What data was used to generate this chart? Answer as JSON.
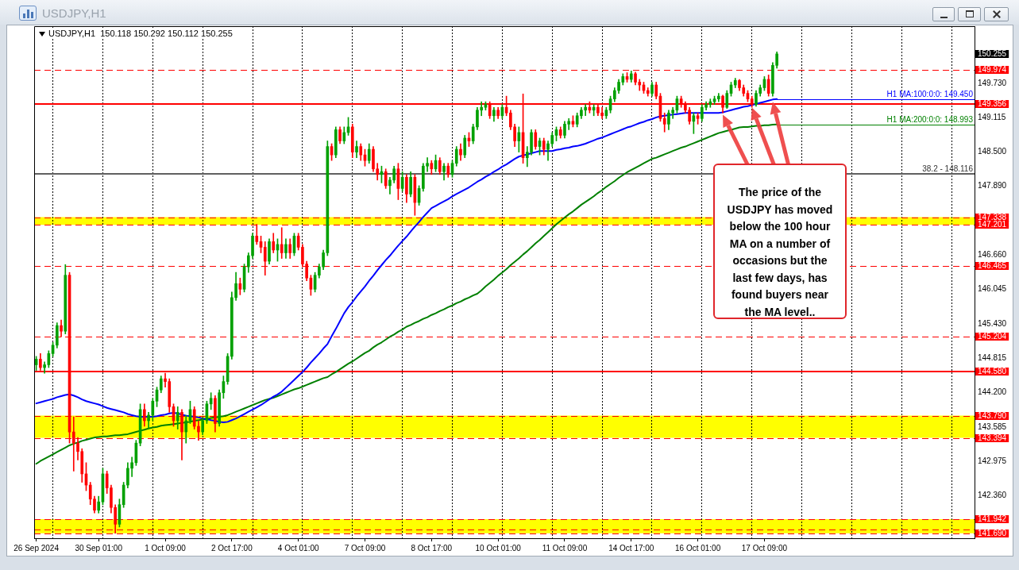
{
  "chart_data": {
    "type": "candlestick",
    "title": "USDJPY,H1",
    "subtitle": "USDJPY,H1  150.118 150.292 150.112 150.255",
    "categories": [
      "26 Sep 2024",
      null,
      null,
      null,
      null,
      null,
      null,
      null,
      null,
      null,
      null,
      null,
      null,
      null,
      null,
      "30 Sep 01:00",
      null,
      null,
      null,
      null,
      null,
      null,
      null,
      null,
      null,
      null,
      null,
      null,
      null,
      null,
      null,
      "1 Oct 09:00",
      null,
      null,
      null,
      null,
      null,
      null,
      null,
      null,
      null,
      null,
      null,
      null,
      null,
      null,
      null,
      "2 Oct 17:00",
      null,
      null,
      null,
      null,
      null,
      null,
      null,
      null,
      null,
      null,
      null,
      null,
      null,
      null,
      null,
      "4 Oct 01:00",
      null,
      null,
      null,
      null,
      null,
      null,
      null,
      null,
      null,
      null,
      null,
      null,
      null,
      null,
      null,
      "7 Oct 09:00",
      null,
      null,
      null,
      null,
      null,
      null,
      null,
      null,
      null,
      null,
      null,
      null,
      null,
      null,
      null,
      "8 Oct 17:00",
      null,
      null,
      null,
      null,
      null,
      null,
      null,
      null,
      null,
      null,
      null,
      null,
      null,
      null,
      null,
      "10 Oct 01:00",
      null,
      null,
      null,
      null,
      null,
      null,
      null,
      null,
      null,
      null,
      null,
      null,
      null,
      null,
      null,
      "11 Oct 09:00",
      null,
      null,
      null,
      null,
      null,
      null,
      null,
      null,
      null,
      null,
      null,
      null,
      null,
      null,
      null,
      "14 Oct 17:00",
      null,
      null,
      null,
      null,
      null,
      null,
      null,
      null,
      null,
      null,
      null,
      null,
      null,
      null,
      null,
      "16 Oct 01:00",
      null,
      null,
      null,
      null,
      null,
      null,
      null,
      null,
      null,
      null,
      null,
      null,
      null,
      null,
      null,
      "17 Oct 09:00",
      null,
      null,
      null,
      null,
      null,
      null,
      null,
      null,
      null,
      null,
      null,
      null,
      null,
      null,
      null,
      null,
      null,
      null,
      null,
      null,
      null,
      null,
      null,
      null,
      null,
      null,
      null,
      null,
      null,
      null,
      null,
      null,
      null,
      null,
      null,
      null,
      null,
      null,
      null,
      null,
      null,
      null,
      null,
      null,
      null,
      null,
      null,
      null,
      null,
      null
    ],
    "ohlc": [
      [
        144.7,
        144.85,
        144.6,
        144.8
      ],
      [
        144.8,
        144.9,
        144.6,
        144.65
      ],
      [
        144.65,
        144.75,
        144.55,
        144.7
      ],
      [
        144.7,
        144.95,
        144.65,
        144.9
      ],
      [
        144.9,
        145.1,
        144.85,
        145.05
      ],
      [
        145.05,
        145.45,
        145.0,
        145.4
      ],
      [
        145.4,
        145.5,
        145.2,
        145.3
      ],
      [
        145.3,
        146.49,
        145.25,
        146.3
      ],
      [
        146.3,
        146.35,
        143.3,
        143.5
      ],
      [
        143.5,
        143.77,
        142.8,
        143.3
      ],
      [
        143.3,
        143.4,
        143.0,
        143.15
      ],
      [
        143.15,
        143.2,
        142.6,
        142.75
      ],
      [
        142.75,
        142.95,
        142.45,
        142.55
      ],
      [
        142.55,
        142.6,
        142.2,
        142.3
      ],
      [
        142.3,
        142.35,
        142.05,
        142.1
      ],
      [
        142.1,
        142.35,
        142.05,
        142.25
      ],
      [
        142.25,
        142.85,
        142.2,
        142.75
      ],
      [
        142.75,
        142.8,
        142.4,
        142.5
      ],
      [
        142.5,
        142.55,
        142.05,
        142.15
      ],
      [
        142.15,
        142.2,
        141.69,
        141.85
      ],
      [
        141.85,
        142.3,
        141.8,
        142.2
      ],
      [
        142.2,
        142.6,
        142.15,
        142.55
      ],
      [
        142.55,
        142.95,
        142.5,
        142.85
      ],
      [
        142.85,
        143.05,
        142.7,
        142.95
      ],
      [
        142.95,
        143.35,
        142.9,
        143.3
      ],
      [
        143.3,
        144.0,
        143.25,
        143.9
      ],
      [
        143.9,
        144.0,
        143.6,
        143.7
      ],
      [
        143.7,
        143.85,
        143.55,
        143.8
      ],
      [
        143.8,
        144.1,
        143.7,
        144.05
      ],
      [
        144.05,
        144.3,
        143.95,
        144.25
      ],
      [
        144.25,
        144.5,
        144.2,
        144.45
      ],
      [
        144.45,
        144.55,
        144.3,
        144.4
      ],
      [
        144.4,
        144.45,
        143.85,
        143.95
      ],
      [
        143.95,
        144.0,
        143.6,
        143.7
      ],
      [
        143.7,
        143.95,
        143.55,
        143.85
      ],
      [
        143.85,
        143.9,
        143.0,
        143.5
      ],
      [
        143.5,
        143.8,
        143.3,
        143.7
      ],
      [
        143.7,
        144.05,
        143.65,
        143.9
      ],
      [
        143.9,
        143.95,
        143.55,
        143.6
      ],
      [
        143.6,
        143.7,
        143.35,
        143.5
      ],
      [
        143.5,
        143.75,
        143.45,
        143.7
      ],
      [
        143.7,
        144.05,
        143.65,
        144.0
      ],
      [
        144.0,
        144.2,
        143.9,
        144.1
      ],
      [
        144.1,
        144.15,
        143.5,
        143.65
      ],
      [
        143.65,
        144.25,
        143.6,
        144.2
      ],
      [
        144.2,
        144.5,
        144.1,
        144.4
      ],
      [
        144.4,
        144.9,
        144.35,
        144.85
      ],
      [
        144.85,
        146.0,
        144.8,
        145.9
      ],
      [
        145.9,
        146.35,
        145.85,
        146.15
      ],
      [
        146.15,
        146.25,
        145.95,
        146.05
      ],
      [
        146.05,
        146.5,
        146.0,
        146.45
      ],
      [
        146.45,
        146.7,
        146.35,
        146.65
      ],
      [
        146.65,
        147.05,
        146.6,
        147.0
      ],
      [
        147.0,
        147.21,
        146.85,
        146.9
      ],
      [
        146.9,
        147.0,
        146.7,
        146.8
      ],
      [
        146.8,
        146.9,
        146.3,
        146.55
      ],
      [
        146.55,
        146.95,
        146.5,
        146.9
      ],
      [
        146.9,
        147.05,
        146.7,
        146.75
      ],
      [
        146.75,
        146.95,
        146.55,
        146.85
      ],
      [
        146.85,
        147.15,
        146.6,
        146.7
      ],
      [
        146.7,
        146.95,
        146.6,
        146.85
      ],
      [
        146.85,
        146.95,
        146.6,
        146.7
      ],
      [
        146.7,
        147.05,
        146.65,
        147.0
      ],
      [
        147.0,
        147.05,
        146.75,
        146.8
      ],
      [
        146.8,
        146.85,
        146.45,
        146.5
      ],
      [
        146.5,
        146.55,
        146.2,
        146.25
      ],
      [
        146.25,
        146.3,
        145.94,
        146.05
      ],
      [
        146.05,
        146.35,
        146.0,
        146.3
      ],
      [
        146.3,
        146.5,
        146.25,
        146.45
      ],
      [
        146.45,
        146.75,
        146.4,
        146.7
      ],
      [
        146.7,
        148.7,
        146.65,
        148.6
      ],
      [
        148.6,
        148.65,
        148.35,
        148.45
      ],
      [
        148.45,
        148.95,
        148.4,
        148.9
      ],
      [
        148.9,
        148.95,
        148.65,
        148.7
      ],
      [
        148.7,
        148.95,
        148.65,
        148.85
      ],
      [
        148.85,
        149.12,
        148.8,
        148.95
      ],
      [
        148.95,
        149.0,
        148.4,
        148.5
      ],
      [
        148.5,
        148.7,
        148.4,
        148.6
      ],
      [
        148.6,
        148.65,
        148.35,
        148.45
      ],
      [
        148.45,
        148.55,
        148.25,
        148.35
      ],
      [
        148.35,
        148.65,
        148.3,
        148.55
      ],
      [
        148.55,
        148.6,
        148.15,
        148.2
      ],
      [
        148.2,
        148.3,
        148.0,
        148.1
      ],
      [
        148.1,
        148.25,
        147.95,
        148.15
      ],
      [
        148.15,
        148.2,
        147.85,
        147.9
      ],
      [
        147.9,
        148.05,
        147.75,
        148.0
      ],
      [
        148.0,
        148.25,
        147.95,
        148.2
      ],
      [
        148.2,
        148.3,
        147.65,
        147.85
      ],
      [
        147.85,
        148.15,
        147.8,
        148.05
      ],
      [
        148.05,
        148.1,
        147.6,
        147.75
      ],
      [
        147.75,
        148.15,
        147.7,
        148.05
      ],
      [
        148.05,
        148.1,
        147.37,
        147.6
      ],
      [
        147.6,
        147.9,
        147.55,
        147.85
      ],
      [
        147.85,
        148.3,
        147.8,
        148.25
      ],
      [
        148.25,
        148.4,
        148.15,
        148.3
      ],
      [
        148.3,
        148.35,
        148.1,
        148.2
      ],
      [
        148.2,
        148.45,
        148.15,
        148.35
      ],
      [
        148.35,
        148.4,
        148.1,
        148.15
      ],
      [
        148.15,
        148.3,
        148.0,
        148.25
      ],
      [
        148.25,
        148.3,
        148.05,
        148.1
      ],
      [
        148.1,
        148.35,
        148.05,
        148.3
      ],
      [
        148.3,
        148.6,
        148.25,
        148.55
      ],
      [
        148.55,
        148.65,
        148.35,
        148.45
      ],
      [
        148.45,
        148.8,
        148.4,
        148.75
      ],
      [
        148.75,
        148.85,
        148.6,
        148.7
      ],
      [
        148.7,
        149.0,
        148.65,
        148.95
      ],
      [
        148.95,
        149.3,
        148.9,
        149.25
      ],
      [
        149.25,
        149.4,
        149.15,
        149.3
      ],
      [
        149.3,
        149.4,
        149.25,
        149.35
      ],
      [
        149.35,
        149.4,
        149.1,
        149.15
      ],
      [
        149.15,
        149.3,
        149.05,
        149.25
      ],
      [
        149.25,
        149.3,
        149.1,
        149.15
      ],
      [
        149.15,
        149.35,
        149.1,
        149.3
      ],
      [
        149.3,
        149.5,
        149.15,
        149.2
      ],
      [
        149.2,
        149.25,
        148.9,
        148.95
      ],
      [
        148.95,
        149.0,
        148.6,
        148.7
      ],
      [
        148.7,
        148.95,
        148.5,
        148.85
      ],
      [
        148.85,
        149.54,
        148.3,
        148.4
      ],
      [
        148.4,
        148.6,
        148.24,
        148.5
      ],
      [
        148.5,
        148.9,
        148.45,
        148.85
      ],
      [
        148.85,
        148.9,
        148.55,
        148.6
      ],
      [
        148.6,
        148.75,
        148.45,
        148.7
      ],
      [
        148.7,
        148.75,
        148.45,
        148.55
      ],
      [
        148.55,
        148.7,
        148.35,
        148.65
      ],
      [
        148.65,
        148.85,
        148.6,
        148.8
      ],
      [
        148.8,
        148.95,
        148.7,
        148.9
      ],
      [
        148.9,
        148.95,
        148.75,
        148.8
      ],
      [
        148.8,
        149.05,
        148.75,
        149.0
      ],
      [
        149.0,
        149.1,
        148.9,
        149.05
      ],
      [
        149.05,
        149.15,
        148.95,
        149.0
      ],
      [
        149.0,
        149.2,
        148.95,
        149.15
      ],
      [
        149.15,
        149.3,
        149.1,
        149.25
      ],
      [
        149.25,
        149.35,
        149.15,
        149.3
      ],
      [
        149.3,
        149.4,
        149.2,
        149.25
      ],
      [
        149.25,
        149.35,
        149.15,
        149.3
      ],
      [
        149.3,
        149.35,
        149.15,
        149.2
      ],
      [
        149.2,
        149.3,
        149.1,
        149.15
      ],
      [
        149.15,
        149.3,
        149.1,
        149.25
      ],
      [
        149.25,
        149.5,
        149.2,
        149.45
      ],
      [
        149.45,
        149.65,
        149.4,
        149.6
      ],
      [
        149.6,
        149.8,
        149.55,
        149.75
      ],
      [
        149.75,
        149.9,
        149.7,
        149.85
      ],
      [
        149.85,
        149.92,
        149.75,
        149.8
      ],
      [
        149.8,
        149.95,
        149.75,
        149.9
      ],
      [
        149.9,
        149.93,
        149.7,
        149.75
      ],
      [
        149.75,
        149.8,
        149.6,
        149.7
      ],
      [
        149.7,
        149.75,
        149.55,
        149.6
      ],
      [
        149.6,
        149.65,
        149.5,
        149.55
      ],
      [
        149.55,
        149.75,
        149.5,
        149.7
      ],
      [
        149.7,
        149.75,
        149.45,
        149.5
      ],
      [
        149.5,
        149.55,
        149.05,
        149.1
      ],
      [
        149.1,
        149.2,
        148.86,
        149.0
      ],
      [
        149.0,
        149.25,
        148.9,
        149.2
      ],
      [
        149.2,
        149.3,
        149.1,
        149.25
      ],
      [
        149.25,
        149.5,
        149.2,
        149.45
      ],
      [
        149.45,
        149.5,
        149.3,
        149.35
      ],
      [
        149.35,
        149.4,
        149.2,
        149.25
      ],
      [
        149.25,
        149.3,
        149.0,
        149.05
      ],
      [
        149.05,
        149.2,
        148.83,
        149.15
      ],
      [
        149.15,
        149.2,
        149.0,
        149.1
      ],
      [
        149.1,
        149.35,
        149.05,
        149.3
      ],
      [
        149.3,
        149.4,
        149.25,
        149.35
      ],
      [
        149.35,
        149.45,
        149.3,
        149.4
      ],
      [
        149.4,
        149.5,
        149.35,
        149.45
      ],
      [
        149.45,
        149.55,
        149.4,
        149.5
      ],
      [
        149.5,
        149.52,
        149.2,
        149.3
      ],
      [
        149.3,
        149.6,
        149.28,
        149.55
      ],
      [
        149.55,
        149.75,
        149.5,
        149.7
      ],
      [
        149.7,
        149.82,
        149.65,
        149.78
      ],
      [
        149.78,
        149.8,
        149.6,
        149.65
      ],
      [
        149.65,
        149.7,
        149.5,
        149.55
      ],
      [
        149.55,
        149.6,
        149.4,
        149.45
      ],
      [
        149.45,
        149.5,
        149.3,
        149.35
      ],
      [
        149.35,
        149.6,
        149.32,
        149.55
      ],
      [
        149.55,
        149.7,
        149.5,
        149.65
      ],
      [
        149.65,
        149.85,
        149.6,
        149.8
      ],
      [
        149.8,
        149.88,
        149.5,
        149.55
      ],
      [
        149.55,
        150.1,
        149.5,
        150.05
      ],
      [
        150.05,
        150.292,
        150.0,
        150.255
      ],
      null,
      null,
      null,
      null,
      null,
      null,
      null,
      null,
      null,
      null,
      null,
      null,
      null,
      null,
      null,
      null,
      null,
      null,
      null,
      null,
      null,
      null,
      null,
      null,
      null,
      null,
      null,
      null,
      null,
      null,
      null,
      null,
      null,
      null,
      null,
      null,
      null,
      null,
      null,
      null,
      null,
      null,
      null,
      null,
      null,
      null,
      null
    ],
    "colors": [
      "#00a000",
      "#ff0000",
      "#00a000",
      "#00a000",
      "#00a000",
      "#00a000",
      "#ff0000",
      "#00a000",
      "#ff0000",
      "#ff0000",
      "#ff0000",
      "#ff0000",
      "#ff0000",
      "#ff0000",
      "#ff0000",
      "#00a000",
      "#00a000",
      "#ff0000",
      "#ff0000",
      "#ff0000",
      "#00a000",
      "#00a000",
      "#00a000",
      "#00a000",
      "#00a000",
      "#00a000",
      "#ff0000",
      "#00a000",
      "#00a000",
      "#00a000",
      "#00a000",
      "#ff0000",
      "#ff0000",
      "#ff0000",
      "#00a000",
      "#ff0000",
      "#00a000",
      "#00a000",
      "#ff0000",
      "#ff0000",
      "#00a000",
      "#00a000",
      "#00a000",
      "#ff0000",
      "#00a000",
      "#00a000",
      "#00a000",
      "#00a000",
      "#00a000",
      "#ff0000",
      "#00a000",
      "#00a000",
      "#00a000",
      "#ff0000",
      "#ff0000",
      "#ff0000",
      "#00a000",
      "#ff0000",
      "#00a000",
      "#ff0000",
      "#00a000",
      "#ff0000",
      "#00a000",
      "#ff0000",
      "#ff0000",
      "#ff0000",
      "#ff0000",
      "#00a000",
      "#00a000",
      "#00a000",
      "#00a000",
      "#ff0000",
      "#00a000",
      "#ff0000",
      "#00a000",
      "#00a000",
      "#ff0000",
      "#00a000",
      "#ff0000",
      "#ff0000",
      "#00a000",
      "#ff0000",
      "#ff0000",
      "#00a000",
      "#ff0000",
      "#00a000",
      "#00a000",
      "#ff0000",
      "#00a000",
      "#ff0000",
      "#00a000",
      "#ff0000",
      "#00a000",
      "#00a000",
      "#00a000",
      "#ff0000",
      "#00a000",
      "#ff0000",
      "#00a000",
      "#ff0000",
      "#00a000",
      "#00a000",
      "#ff0000",
      "#00a000",
      "#ff0000",
      "#00a000",
      "#00a000",
      "#00a000",
      "#00a000",
      "#ff0000",
      "#00a000",
      "#ff0000",
      "#00a000",
      "#ff0000",
      "#ff0000",
      "#ff0000",
      "#00a000",
      "#ff0000",
      "#00a000",
      "#00a000",
      "#ff0000",
      "#00a000",
      "#ff0000",
      "#00a000",
      "#00a000",
      "#00a000",
      "#ff0000",
      "#00a000",
      "#00a000",
      "#ff0000",
      "#00a000",
      "#00a000",
      "#00a000",
      "#ff0000",
      "#00a000",
      "#ff0000",
      "#ff0000",
      "#00a000",
      "#00a000",
      "#00a000",
      "#00a000",
      "#00a000",
      "#ff0000",
      "#00a000",
      "#ff0000",
      "#ff0000",
      "#ff0000",
      "#ff0000",
      "#00a000",
      "#ff0000",
      "#ff0000",
      "#ff0000",
      "#00a000",
      "#00a000",
      "#00a000",
      "#ff0000",
      "#ff0000",
      "#ff0000",
      "#00a000",
      "#ff0000",
      "#00a000",
      "#00a000",
      "#00a000",
      "#00a000",
      "#00a000",
      "#ff0000",
      "#00a000",
      "#00a000",
      "#00a000",
      "#ff0000",
      "#ff0000",
      "#ff0000",
      "#ff0000",
      "#00a000",
      "#00a000",
      "#00a000",
      "#ff0000",
      "#00a000",
      "#00a000",
      null,
      null,
      null,
      null,
      null,
      null,
      null,
      null,
      null,
      null,
      null,
      null,
      null,
      null,
      null,
      null,
      null,
      null,
      null,
      null,
      null,
      null,
      null,
      null,
      null,
      null,
      null,
      null,
      null,
      null,
      null,
      null,
      null,
      null,
      null,
      null,
      null,
      null,
      null,
      null,
      null,
      null,
      null,
      null,
      null,
      null,
      null
    ],
    "series": [
      {
        "name": "H1 MA:100:0:0: 149.450",
        "type": "line",
        "color": "#0000ff",
        "values": [
          144.01,
          144.03,
          144.05,
          144.07,
          144.09,
          144.12,
          144.14,
          144.16,
          144.17,
          144.15,
          144.12,
          144.08,
          144.05,
          144.03,
          144.01,
          143.99,
          143.96,
          143.93,
          143.91,
          143.89,
          143.87,
          143.85,
          143.82,
          143.8,
          143.78,
          143.77,
          143.77,
          143.77,
          143.77,
          143.78,
          143.8,
          143.81,
          143.83,
          143.84,
          143.83,
          143.81,
          143.79,
          143.78,
          143.77,
          143.76,
          143.74,
          143.73,
          143.71,
          143.7,
          143.68,
          143.67,
          143.68,
          143.71,
          143.74,
          143.78,
          143.82,
          143.86,
          143.9,
          143.94,
          143.98,
          144.03,
          144.08,
          144.13,
          144.17,
          144.22,
          144.29,
          144.36,
          144.43,
          144.5,
          144.57,
          144.65,
          144.74,
          144.82,
          144.9,
          144.99,
          145.07,
          145.21,
          145.34,
          145.48,
          145.62,
          145.73,
          145.82,
          145.92,
          146.01,
          146.1,
          146.2,
          146.29,
          146.39,
          146.48,
          146.57,
          146.65,
          146.74,
          146.83,
          146.91,
          146.99,
          147.08,
          147.17,
          147.25,
          147.34,
          147.42,
          147.5,
          147.54,
          147.58,
          147.62,
          147.66,
          147.71,
          147.75,
          147.79,
          147.83,
          147.87,
          147.92,
          147.97,
          148.01,
          148.06,
          148.1,
          148.15,
          148.19,
          148.24,
          148.28,
          148.33,
          148.38,
          148.42,
          148.44,
          148.46,
          148.48,
          148.5,
          148.52,
          148.52,
          148.52,
          148.52,
          148.54,
          148.55,
          148.57,
          148.58,
          148.6,
          148.61,
          148.63,
          148.65,
          148.68,
          148.71,
          148.74,
          148.76,
          148.79,
          148.82,
          148.85,
          148.88,
          148.91,
          148.94,
          148.96,
          148.99,
          149.02,
          149.04,
          149.07,
          149.09,
          149.12,
          149.14,
          149.15,
          149.16,
          149.17,
          149.18,
          149.19,
          149.2,
          149.2,
          149.2,
          149.2,
          149.2,
          149.2,
          149.2,
          149.2,
          149.2,
          149.21,
          149.23,
          149.25,
          149.27,
          149.29,
          149.31,
          149.32,
          149.34,
          149.36,
          149.38,
          149.4,
          149.42,
          149.44,
          149.45,
          null,
          null,
          null,
          null,
          null,
          null,
          null,
          null,
          null,
          null,
          null,
          null,
          null,
          null,
          null,
          null,
          null,
          null,
          null,
          null,
          null,
          null,
          null,
          null,
          null,
          null,
          null,
          null,
          null,
          null,
          null,
          null,
          null,
          null,
          null,
          null,
          null,
          null,
          null,
          null,
          null,
          null,
          null,
          null,
          null,
          null,
          null
        ]
      },
      {
        "name": "H1 MA:200:0:0: 148.993",
        "type": "line",
        "color": "#008000",
        "values": [
          142.93,
          142.98,
          143.02,
          143.06,
          143.1,
          143.14,
          143.18,
          143.22,
          143.26,
          143.29,
          143.31,
          143.34,
          143.36,
          143.38,
          143.4,
          143.41,
          143.42,
          143.42,
          143.43,
          143.44,
          143.44,
          143.45,
          143.46,
          143.48,
          143.5,
          143.52,
          143.54,
          143.56,
          143.58,
          143.59,
          143.61,
          143.62,
          143.63,
          143.64,
          143.65,
          143.66,
          143.67,
          143.68,
          143.7,
          143.71,
          143.72,
          143.73,
          143.75,
          143.76,
          143.77,
          143.78,
          143.8,
          143.83,
          143.86,
          143.89,
          143.92,
          143.95,
          143.98,
          144.01,
          144.04,
          144.07,
          144.09,
          144.11,
          144.14,
          144.17,
          144.2,
          144.23,
          144.26,
          144.28,
          144.31,
          144.34,
          144.37,
          144.4,
          144.43,
          144.46,
          144.48,
          144.53,
          144.57,
          144.62,
          144.67,
          144.72,
          144.76,
          144.81,
          144.86,
          144.91,
          144.95,
          145.01,
          145.06,
          145.1,
          145.15,
          145.2,
          145.24,
          145.29,
          145.33,
          145.38,
          145.41,
          145.45,
          145.48,
          145.52,
          145.55,
          145.59,
          145.62,
          145.66,
          145.69,
          145.73,
          145.76,
          145.8,
          145.83,
          145.87,
          145.9,
          145.94,
          145.97,
          146.03,
          146.1,
          146.16,
          146.22,
          146.29,
          146.35,
          146.41,
          146.48,
          146.54,
          146.6,
          146.67,
          146.73,
          146.8,
          146.87,
          146.93,
          147.0,
          147.07,
          147.14,
          147.21,
          147.27,
          147.33,
          147.39,
          147.44,
          147.5,
          147.56,
          147.61,
          147.66,
          147.71,
          147.77,
          147.82,
          147.88,
          147.93,
          147.98,
          148.04,
          148.09,
          148.14,
          148.18,
          148.22,
          148.26,
          148.3,
          148.34,
          148.38,
          148.4,
          148.43,
          148.46,
          148.49,
          148.52,
          148.55,
          148.58,
          148.6,
          148.63,
          148.66,
          148.69,
          148.72,
          148.75,
          148.78,
          148.81,
          148.84,
          148.86,
          148.88,
          148.9,
          148.92,
          148.94,
          148.95,
          148.95,
          148.96,
          148.97,
          148.97,
          148.98,
          148.98,
          148.99,
          148.993,
          null,
          null,
          null,
          null,
          null,
          null,
          null,
          null,
          null,
          null,
          null,
          null,
          null,
          null,
          null,
          null,
          null,
          null,
          null,
          null,
          null,
          null,
          null,
          null,
          null,
          null,
          null,
          null,
          null,
          null,
          null,
          null,
          null,
          null,
          null,
          null,
          null,
          null,
          null,
          null,
          null,
          null,
          null,
          null,
          null,
          null,
          null
        ]
      }
    ],
    "ylim": [
      141.6,
      150.75
    ],
    "yticks": [
      {
        "value": 149.73,
        "label": "149.730"
      },
      149.115,
      {
        "value": 148.5,
        "label": "148.500"
      },
      {
        "value": 147.89,
        "label": "147.890"
      },
      {
        "value": 146.66,
        "label": "146.660"
      },
      146.045,
      {
        "value": 145.43,
        "label": "145.430"
      },
      144.815,
      {
        "value": 144.2,
        "label": "144.200"
      },
      143.585,
      142.975,
      {
        "value": 142.36,
        "label": "142.360"
      }
    ],
    "grid": "x",
    "bands": [
      {
        "axis": "y",
        "from": 147.201,
        "to": 147.338,
        "color": "#ffff00"
      },
      {
        "axis": "y",
        "from": 143.394,
        "to": 143.79,
        "color": "#ffff00"
      },
      {
        "axis": "y",
        "from": 141.69,
        "to": 141.942,
        "color": "#ffff00"
      }
    ],
    "ref_lines": [
      {
        "axis": "y",
        "value": 149.974,
        "label": "149.974",
        "color": "#ff0000",
        "line_style": "dashed"
      },
      {
        "axis": "y",
        "value": 149.356,
        "label": "149.356",
        "color": "#ff0000",
        "line_style": "solid"
      },
      {
        "axis": "y",
        "value": 148.116,
        "color": "#606060",
        "line_style": "solid"
      },
      {
        "axis": "y",
        "value": 147.338,
        "label": "147.338",
        "color": "#ff0000",
        "line_style": "dashed"
      },
      {
        "axis": "y",
        "value": 147.201,
        "label": "147.201",
        "color": "#ff0000",
        "line_style": "dashed"
      },
      {
        "axis": "y",
        "value": 146.465,
        "label": "146.465",
        "color": "#ff0000",
        "line_style": "dashed"
      },
      {
        "axis": "y",
        "value": 145.204,
        "label": "145.204",
        "color": "#ff0000",
        "line_style": "dashed"
      },
      {
        "axis": "y",
        "value": 144.58,
        "label": "144.580",
        "color": "#ff0000",
        "line_style": "solid"
      },
      {
        "axis": "y",
        "value": 143.79,
        "label": "143.790",
        "color": "#ff0000",
        "line_style": "dashed"
      },
      {
        "axis": "y",
        "value": 143.394,
        "label": "143.394",
        "color": "#ff0000",
        "line_style": "dashed"
      },
      {
        "axis": "y",
        "value": 141.942,
        "label": "141.942",
        "color": "#ff0000",
        "line_style": "dashed"
      },
      {
        "axis": "y",
        "value": 141.756,
        "color": "#ff0000",
        "line_style": "dashed"
      },
      {
        "axis": "y",
        "value": 141.69,
        "label": "141.690",
        "color": "#ff0000",
        "line_style": "dashed"
      }
    ],
    "annotations": [
      "The price of the USDJPY has moved below the 100 hour MA on a number of occasions but the last few days, has found buyers near the MA level..",
      {
        "text": "38.2 - 148.116",
        "y": 148.116
      },
      "150.255"
    ]
  }
}
